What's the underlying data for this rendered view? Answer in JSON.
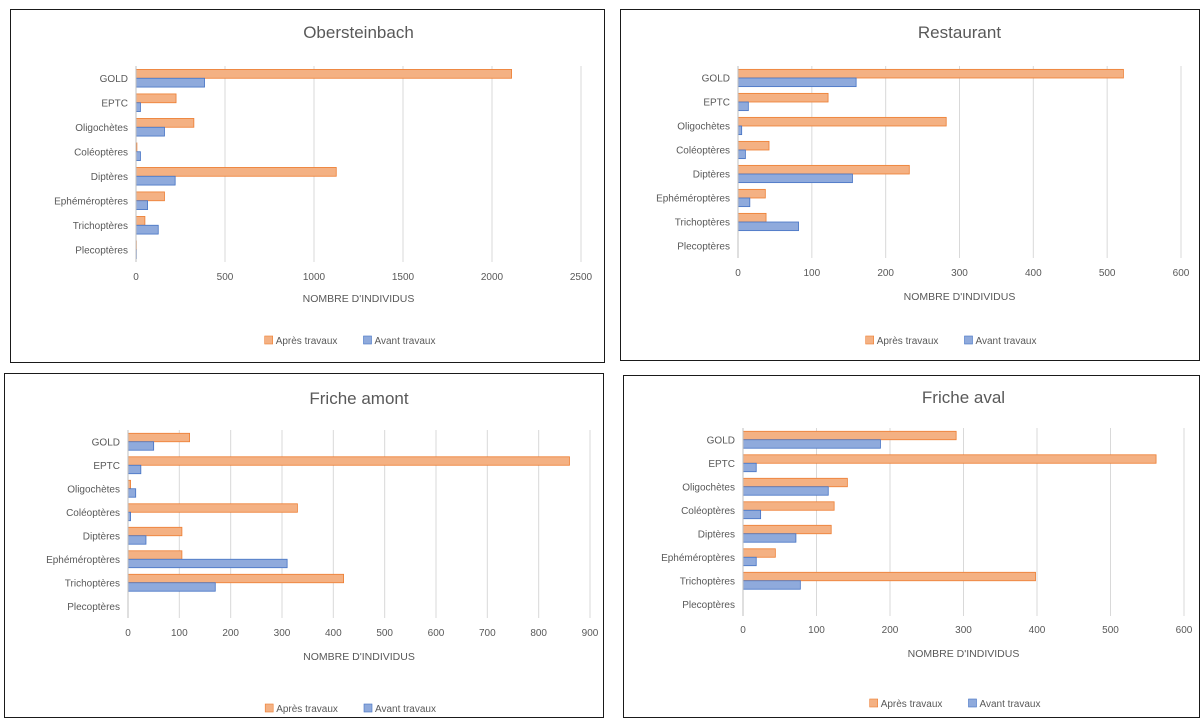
{
  "chart_data": [
    {
      "type": "bar",
      "orientation": "horizontal",
      "title": "Obersteinbach",
      "xlabel": "NOMBRE D'INDIVIDUS",
      "categories": [
        "GOLD",
        "EPTC",
        "Oligochètes",
        "Coléoptères",
        "Diptères",
        "Ephéméroptères",
        "Trichoptères",
        "Plecoptères"
      ],
      "xlim": [
        0,
        2500
      ],
      "xticks": [
        "0",
        "500",
        "1000",
        "1500",
        "2000",
        "2500"
      ],
      "series": [
        {
          "name": "Après travaux",
          "color": "#F4B183",
          "stroke": "#ED7D31",
          "values": [
            2110,
            225,
            325,
            5,
            1125,
            160,
            50,
            2
          ]
        },
        {
          "name": "Avant travaux",
          "color": "#8FAADC",
          "stroke": "#4472C4",
          "values": [
            385,
            25,
            160,
            25,
            220,
            65,
            125,
            2
          ]
        }
      ],
      "legend": "bottom",
      "grid": true
    },
    {
      "type": "bar",
      "orientation": "horizontal",
      "title": "Restaurant",
      "xlabel": "NOMBRE D'INDIVIDUS",
      "categories": [
        "GOLD",
        "EPTC",
        "Oligochètes",
        "Coléoptères",
        "Diptères",
        "Ephéméroptères",
        "Trichoptères",
        "Plecoptères"
      ],
      "xlim": [
        0,
        600
      ],
      "xticks": [
        "0",
        "100",
        "200",
        "300",
        "400",
        "500",
        "600"
      ],
      "series": [
        {
          "name": "Après travaux",
          "color": "#F4B183",
          "stroke": "#ED7D31",
          "values": [
            522,
            122,
            282,
            42,
            232,
            37,
            38,
            0
          ]
        },
        {
          "name": "Avant travaux",
          "color": "#8FAADC",
          "stroke": "#4472C4",
          "values": [
            160,
            14,
            5,
            10,
            155,
            16,
            82,
            0
          ]
        }
      ],
      "legend": "bottom",
      "grid": true
    },
    {
      "type": "bar",
      "orientation": "horizontal",
      "title": "Friche amont",
      "xlabel": "NOMBRE D'INDIVIDUS",
      "categories": [
        "GOLD",
        "EPTC",
        "Oligochètes",
        "Coléoptères",
        "Diptères",
        "Ephéméroptères",
        "Trichoptères",
        "Plecoptères"
      ],
      "xlim": [
        0,
        900
      ],
      "xticks": [
        "0",
        "100",
        "200",
        "300",
        "400",
        "500",
        "600",
        "700",
        "800",
        "900"
      ],
      "series": [
        {
          "name": "Après travaux",
          "color": "#F4B183",
          "stroke": "#ED7D31",
          "values": [
            120,
            860,
            5,
            330,
            105,
            105,
            420,
            0
          ]
        },
        {
          "name": "Avant travaux",
          "color": "#8FAADC",
          "stroke": "#4472C4",
          "values": [
            50,
            25,
            15,
            5,
            35,
            310,
            170,
            0
          ]
        }
      ],
      "legend": "bottom",
      "grid": true
    },
    {
      "type": "bar",
      "orientation": "horizontal",
      "title": "Friche aval",
      "xlabel": "NOMBRE D'INDIVIDUS",
      "categories": [
        "GOLD",
        "EPTC",
        "Oligochètes",
        "Coléoptères",
        "Diptères",
        "Ephéméroptères",
        "Trichoptères",
        "Plecoptères"
      ],
      "xlim": [
        0,
        600
      ],
      "xticks": [
        "0",
        "100",
        "200",
        "300",
        "400",
        "500",
        "600"
      ],
      "series": [
        {
          "name": "Après travaux",
          "color": "#F4B183",
          "stroke": "#ED7D31",
          "values": [
            290,
            562,
            142,
            124,
            120,
            44,
            398,
            0
          ]
        },
        {
          "name": "Avant travaux",
          "color": "#8FAADC",
          "stroke": "#4472C4",
          "values": [
            187,
            18,
            116,
            24,
            72,
            18,
            78,
            0
          ]
        }
      ],
      "legend": "bottom",
      "grid": true
    }
  ]
}
